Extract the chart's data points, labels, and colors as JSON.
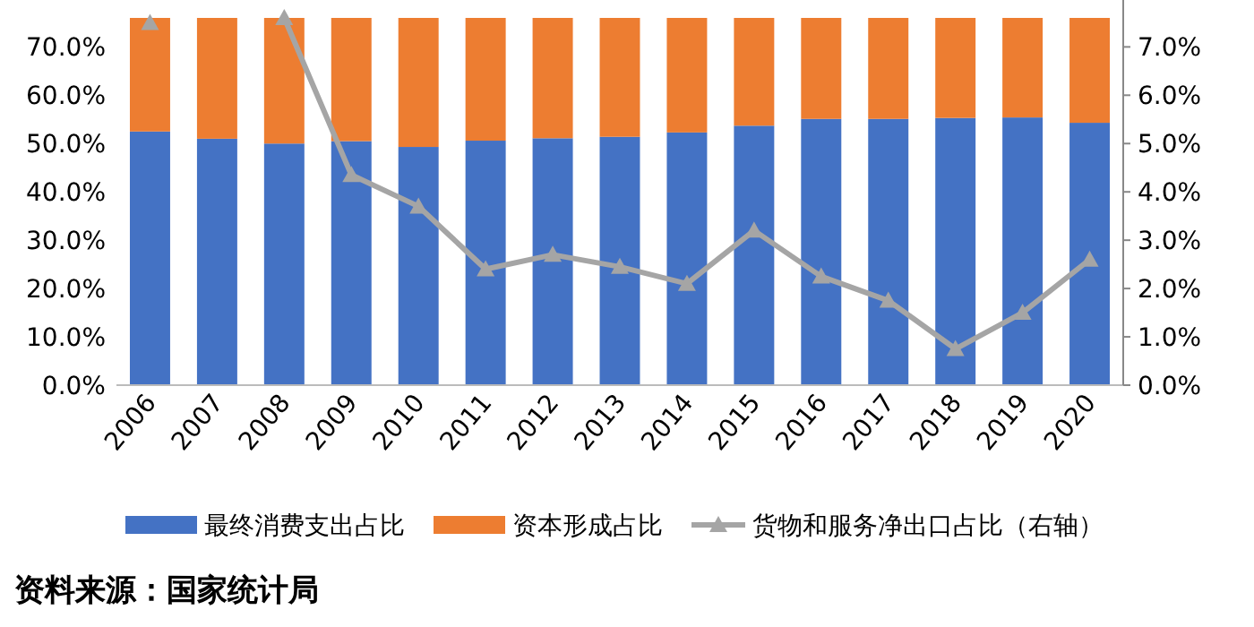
{
  "chart_data": {
    "type": "bar",
    "stacked": true,
    "categories": [
      "2006",
      "2007",
      "2008",
      "2009",
      "2010",
      "2011",
      "2012",
      "2013",
      "2014",
      "2015",
      "2016",
      "2017",
      "2018",
      "2019",
      "2020"
    ],
    "series": [
      {
        "name": "最终消费支出占比",
        "color": "#4472c4",
        "values": [
          52.5,
          51,
          50,
          50.5,
          49.3,
          50.6,
          51.1,
          51.4,
          52.3,
          53.7,
          55.1,
          55.1,
          55.3,
          55.4,
          54.3
        ]
      },
      {
        "name": "资本形成占比",
        "color": "#ed7d31",
        "values": [
          23.5,
          25,
          26,
          25.5,
          26.7,
          25.4,
          24.9,
          24.6,
          23.7,
          22.3,
          20.9,
          20.9,
          20.7,
          20.6,
          21.7
        ]
      },
      {
        "name": "货物和服务净出口占比（右轴）",
        "color": "#a5a5a5",
        "type": "line",
        "axis": "y2",
        "marker": "triangle",
        "values": [
          7.5,
          null,
          7.6,
          4.35,
          3.7,
          2.4,
          2.7,
          2.45,
          2.1,
          3.2,
          2.25,
          1.75,
          0.75,
          1.5,
          2.6
        ]
      }
    ],
    "ylim": [
      0,
      76
    ],
    "yticks": [
      {
        "value": 0,
        "label": "0.0%"
      },
      {
        "value": 10,
        "label": "10.0%"
      },
      {
        "value": 20,
        "label": "20.0%"
      },
      {
        "value": 30,
        "label": "30.0%"
      },
      {
        "value": 40,
        "label": "40.0%"
      },
      {
        "value": 50,
        "label": "50.0%"
      },
      {
        "value": 60,
        "label": "60.0%"
      },
      {
        "value": 70,
        "label": "70.0%"
      }
    ],
    "y2lim": [
      0,
      7.6
    ],
    "y2ticks": [
      {
        "value": 0,
        "label": "0.0%"
      },
      {
        "value": 1,
        "label": "1.0%"
      },
      {
        "value": 2,
        "label": "2.0%"
      },
      {
        "value": 3,
        "label": "3.0%"
      },
      {
        "value": 4,
        "label": "4.0%"
      },
      {
        "value": 5,
        "label": "5.0%"
      },
      {
        "value": 6,
        "label": "6.0%"
      },
      {
        "value": 7,
        "label": "7.0%"
      }
    ],
    "legend": "bottom",
    "annotations": [
      "资料来源：国家统计局"
    ]
  }
}
